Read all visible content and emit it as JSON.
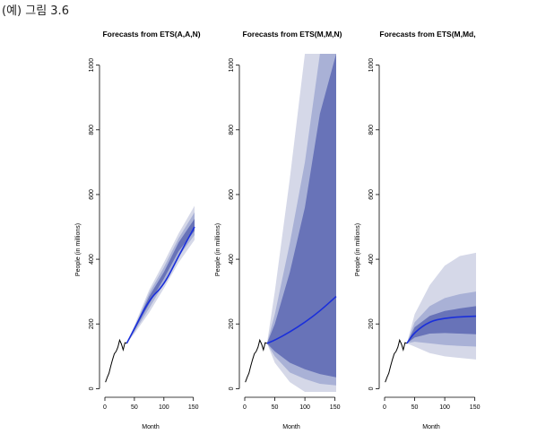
{
  "caption": "(예) 그림 3.6",
  "chart_data": [
    {
      "type": "line",
      "title": "Forecasts from ETS(A,A,N)",
      "xlabel": "Month",
      "ylabel": "People (in millions)",
      "xlim": [
        0,
        155
      ],
      "ylim": [
        -10,
        1035
      ],
      "xticks": [
        0,
        50,
        100,
        150
      ],
      "yticks": [
        0,
        200,
        400,
        600,
        800,
        1000
      ],
      "historical": {
        "x": [
          1,
          4,
          7,
          10,
          13,
          16,
          19,
          22,
          25,
          28,
          31,
          34,
          37
        ],
        "y": [
          20,
          35,
          48,
          70,
          90,
          108,
          115,
          128,
          150,
          138,
          120,
          142,
          140
        ]
      },
      "forecast": {
        "x": [
          37,
          50,
          75,
          100,
          125,
          152
        ],
        "y": [
          140,
          185,
          275,
          320,
          410,
          500
        ]
      },
      "intervals": [
        {
          "level": "outer",
          "lower": [
            140,
            170,
            235,
            310,
            390,
            460
          ],
          "upper": [
            140,
            195,
            305,
            390,
            480,
            565
          ]
        },
        {
          "level": "middle",
          "lower": [
            140,
            175,
            248,
            325,
            408,
            475
          ],
          "upper": [
            140,
            190,
            295,
            375,
            465,
            545
          ]
        },
        {
          "level": "inner",
          "lower": [
            140,
            180,
            262,
            340,
            425,
            488
          ],
          "upper": [
            140,
            187,
            285,
            360,
            452,
            525
          ]
        }
      ]
    },
    {
      "type": "line",
      "title": "Forecasts from ETS(M,M,N)",
      "xlabel": "Month",
      "ylabel": "People (in millions)",
      "xlim": [
        0,
        155
      ],
      "ylim": [
        -10,
        1035
      ],
      "xticks": [
        0,
        50,
        100,
        150
      ],
      "yticks": [
        0,
        200,
        400,
        600,
        800,
        1000
      ],
      "historical": {
        "x": [
          1,
          4,
          7,
          10,
          13,
          16,
          19,
          22,
          25,
          28,
          31,
          34,
          37
        ],
        "y": [
          20,
          35,
          48,
          70,
          90,
          108,
          115,
          128,
          150,
          138,
          120,
          142,
          140
        ]
      },
      "forecast": {
        "x": [
          37,
          50,
          75,
          100,
          125,
          152
        ],
        "y": [
          140,
          150,
          175,
          205,
          240,
          285
        ]
      },
      "intervals": [
        {
          "level": "outer",
          "lower": [
            140,
            80,
            20,
            -10,
            -10,
            -10
          ],
          "upper": [
            140,
            300,
            650,
            1035,
            1035,
            1035
          ]
        },
        {
          "level": "middle",
          "lower": [
            140,
            100,
            50,
            30,
            15,
            10
          ],
          "upper": [
            140,
            230,
            450,
            700,
            1035,
            1035
          ]
        },
        {
          "level": "inner",
          "lower": [
            140,
            115,
            80,
            60,
            45,
            35
          ],
          "upper": [
            140,
            200,
            360,
            560,
            850,
            1035
          ]
        }
      ]
    },
    {
      "type": "line",
      "title": "Forecasts from ETS(M,Md,",
      "xlabel": "Month",
      "ylabel": "People (in millions)",
      "xlim": [
        0,
        155
      ],
      "ylim": [
        -10,
        1035
      ],
      "xticks": [
        0,
        50,
        100,
        150
      ],
      "yticks": [
        0,
        200,
        400,
        600,
        800,
        1000
      ],
      "historical": {
        "x": [
          1,
          4,
          7,
          10,
          13,
          16,
          19,
          22,
          25,
          28,
          31,
          34,
          37
        ],
        "y": [
          20,
          35,
          48,
          70,
          90,
          108,
          115,
          128,
          150,
          138,
          120,
          142,
          140
        ]
      },
      "forecast": {
        "x": [
          37,
          50,
          75,
          100,
          125,
          152
        ],
        "y": [
          140,
          175,
          208,
          218,
          222,
          224
        ]
      },
      "intervals": [
        {
          "level": "outer",
          "lower": [
            140,
            130,
            110,
            100,
            95,
            90
          ],
          "upper": [
            140,
            230,
            320,
            380,
            410,
            420
          ]
        },
        {
          "level": "middle",
          "lower": [
            140,
            145,
            140,
            135,
            132,
            130
          ],
          "upper": [
            140,
            205,
            255,
            280,
            292,
            300
          ]
        },
        {
          "level": "inner",
          "lower": [
            140,
            158,
            170,
            172,
            170,
            168
          ],
          "upper": [
            140,
            190,
            225,
            240,
            248,
            255
          ]
        }
      ]
    }
  ],
  "colors": {
    "band_outer": "#d5d8e8",
    "band_middle": "#a9b1d6",
    "band_inner": "#6873b8",
    "forecast_line": "#1a2fdb",
    "history_line": "#000000"
  }
}
